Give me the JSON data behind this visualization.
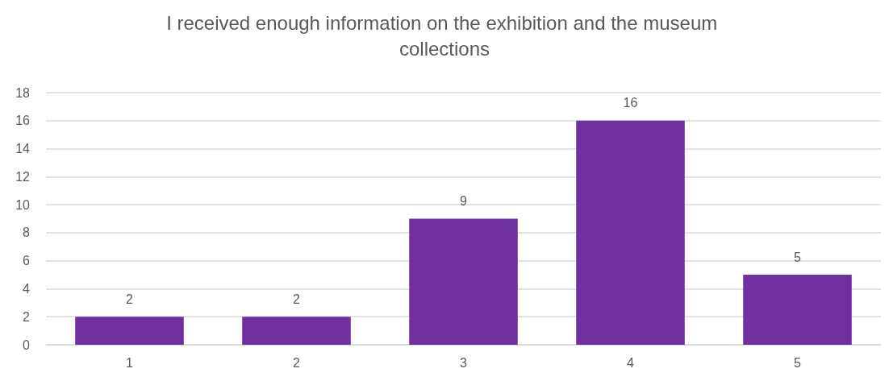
{
  "chart_data": {
    "type": "bar",
    "title": "I received enough information on the exhibition and the museum collections",
    "categories": [
      "1",
      "2",
      "3",
      "4",
      "5"
    ],
    "values": [
      2,
      2,
      9,
      16,
      5
    ],
    "color": "#7030a0",
    "ylim": [
      0,
      18
    ],
    "yticks": [
      0,
      2,
      4,
      6,
      8,
      10,
      12,
      14,
      16,
      18
    ],
    "grid": "y",
    "data_labels": true
  }
}
